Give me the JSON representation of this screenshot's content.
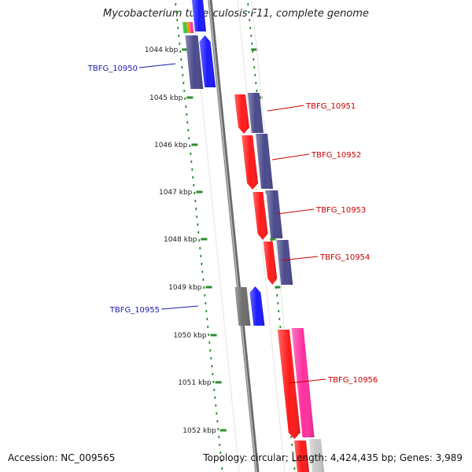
{
  "title": "Mycobacterium tuberculosis F11, complete genome",
  "footer": {
    "accession": "Accession: NC_009565",
    "summary": "Topology: circular; Length: 4,424,435 bp; Genes: 3,989"
  },
  "colors": {
    "scale_ticks": "#2e8b2e",
    "backbone": "#888888",
    "gene_red": "#ff1a1a",
    "gene_blue": "#1a1aff",
    "gene_purple": "#4a4a8c",
    "gene_pink": "#ff2fa0",
    "gene_gray": "#6e6e6e",
    "label_blue": "#1a1ab0",
    "label_red": "#cc0000"
  },
  "scale": {
    "unit": "kbp",
    "labels": [
      "1044 kbp",
      "1045 kbp",
      "1046 kbp",
      "1047 kbp",
      "1048 kbp",
      "1049 kbp",
      "1050 kbp",
      "1051 kbp",
      "1052 kbp"
    ]
  },
  "gene_labels": [
    {
      "text": "TBFG_10950",
      "side": "left"
    },
    {
      "text": "TBFG_10951",
      "side": "right"
    },
    {
      "text": "TBFG_10952",
      "side": "right"
    },
    {
      "text": "TBFG_10953",
      "side": "right"
    },
    {
      "text": "TBFG_10954",
      "side": "right"
    },
    {
      "text": "TBFG_10955",
      "side": "left"
    },
    {
      "text": "TBFG_10956",
      "side": "right"
    }
  ]
}
